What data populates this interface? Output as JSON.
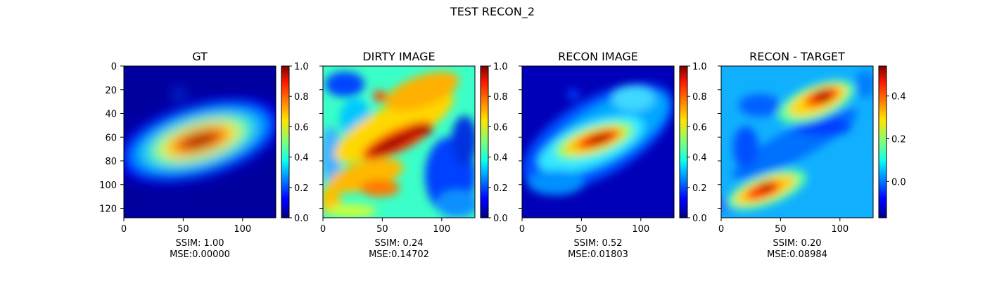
{
  "figure": {
    "suptitle": "TEST RECON_2"
  },
  "colormap": "jet",
  "chart_data": [
    {
      "type": "heatmap",
      "title": "GT",
      "x_ticks": [
        "0",
        "50",
        "100"
      ],
      "y_ticks": [
        "0",
        "20",
        "40",
        "60",
        "80",
        "100",
        "120"
      ],
      "xlim": [
        0,
        128
      ],
      "ylim": [
        128,
        0
      ],
      "colorbar": {
        "min": 0.0,
        "max": 1.0,
        "ticks": [
          "0.0",
          "0.2",
          "0.4",
          "0.6",
          "0.8",
          "1.0"
        ]
      },
      "metrics": {
        "ssim": "SSIM: 1.00",
        "mse": "MSE:0.00000"
      }
    },
    {
      "type": "heatmap",
      "title": "DIRTY IMAGE",
      "x_ticks": [
        "0",
        "50",
        "100"
      ],
      "xlim": [
        0,
        128
      ],
      "ylim": [
        128,
        0
      ],
      "colorbar": {
        "min": 0.0,
        "max": 1.0,
        "ticks": [
          "0.0",
          "0.2",
          "0.4",
          "0.6",
          "0.8",
          "1.0"
        ]
      },
      "metrics": {
        "ssim": "SSIM: 0.24",
        "mse": "MSE:0.14702"
      }
    },
    {
      "type": "heatmap",
      "title": "RECON IMAGE",
      "x_ticks": [
        "0",
        "50",
        "100"
      ],
      "xlim": [
        0,
        128
      ],
      "ylim": [
        128,
        0
      ],
      "colorbar": {
        "min": 0.0,
        "max": 1.0,
        "ticks": [
          "0.0",
          "0.2",
          "0.4",
          "0.6",
          "0.8",
          "1.0"
        ]
      },
      "metrics": {
        "ssim": "SSIM: 0.52",
        "mse": "MSE:0.01803"
      }
    },
    {
      "type": "heatmap",
      "title": "RECON - TARGET",
      "x_ticks": [
        "0",
        "50",
        "100"
      ],
      "xlim": [
        0,
        128
      ],
      "ylim": [
        128,
        0
      ],
      "colorbar": {
        "min": -0.17,
        "max": 0.54,
        "ticks": [
          "0.0",
          "0.2",
          "0.4"
        ]
      },
      "metrics": {
        "ssim": "SSIM: 0.20",
        "mse": "MSE:0.08984"
      }
    }
  ]
}
